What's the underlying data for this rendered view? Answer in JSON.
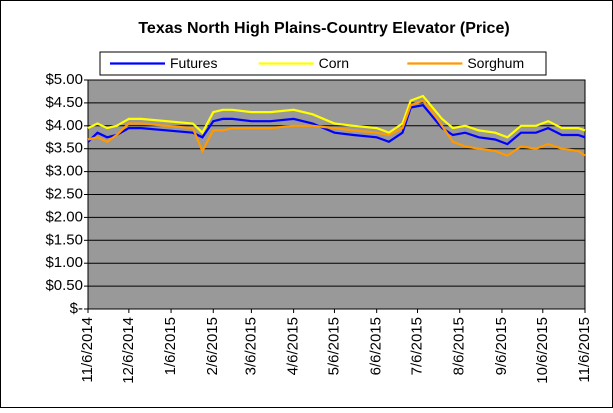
{
  "chart_data": {
    "type": "line",
    "title": "Texas North High Plains-Country Elevator (Price)",
    "legend": "top",
    "grid": true,
    "ylim": [
      0,
      5
    ],
    "yticks": [
      {
        "value": 0,
        "label": "$-"
      },
      {
        "value": 0.5,
        "label": "$0.50"
      },
      {
        "value": 1,
        "label": "$1.00"
      },
      {
        "value": 1.5,
        "label": "$1.50"
      },
      {
        "value": 2,
        "label": "$2.00"
      },
      {
        "value": 2.5,
        "label": "$2.50"
      },
      {
        "value": 3,
        "label": "$3.00"
      },
      {
        "value": 3.5,
        "label": "$3.50"
      },
      {
        "value": 4,
        "label": "$4.00"
      },
      {
        "value": 4.5,
        "label": "$4.50"
      },
      {
        "value": 5,
        "label": "$5.00"
      }
    ],
    "xlim": [
      "11/6/2014",
      "11/6/2015"
    ],
    "xticks": [
      "11/6/2014",
      "12/6/2014",
      "1/6/2015",
      "2/6/2015",
      "3/6/2015",
      "4/6/2015",
      "5/6/2015",
      "6/6/2015",
      "7/6/2015",
      "8/6/2015",
      "9/6/2015",
      "10/6/2015",
      "11/6/2015"
    ],
    "x": [
      "11/6/2014",
      "11/13/2014",
      "11/20/2014",
      "11/27/2014",
      "12/6/2014",
      "12/15/2014",
      "1/22/2015",
      "1/29/2015",
      "2/6/2015",
      "2/13/2015",
      "2/20/2015",
      "3/6/2015",
      "3/20/2015",
      "4/6/2015",
      "4/20/2015",
      "5/6/2015",
      "5/20/2015",
      "6/6/2015",
      "6/15/2015",
      "6/25/2015",
      "7/1/2015",
      "7/10/2015",
      "7/17/2015",
      "7/24/2015",
      "8/1/2015",
      "8/10/2015",
      "8/20/2015",
      "9/1/2015",
      "9/10/2015",
      "9/20/2015",
      "10/1/2015",
      "10/10/2015",
      "10/20/2015",
      "11/1/2015",
      "11/6/2015"
    ],
    "series": [
      {
        "name": "Futures",
        "color": "#0000ff",
        "values": [
          3.65,
          3.85,
          3.75,
          3.8,
          3.95,
          3.95,
          3.85,
          3.75,
          4.1,
          4.15,
          4.15,
          4.1,
          4.1,
          4.15,
          4.05,
          3.85,
          3.8,
          3.75,
          3.65,
          3.85,
          4.4,
          4.45,
          4.2,
          3.95,
          3.8,
          3.85,
          3.75,
          3.7,
          3.6,
          3.85,
          3.85,
          3.95,
          3.8,
          3.8,
          3.75
        ]
      },
      {
        "name": "Corn",
        "color": "#ffff00",
        "values": [
          3.95,
          4.05,
          3.95,
          4.0,
          4.15,
          4.15,
          4.05,
          3.85,
          4.3,
          4.35,
          4.35,
          4.3,
          4.3,
          4.35,
          4.25,
          4.05,
          4.0,
          3.95,
          3.85,
          4.05,
          4.55,
          4.65,
          4.4,
          4.15,
          3.95,
          4.0,
          3.9,
          3.85,
          3.75,
          4.0,
          4.0,
          4.1,
          3.95,
          3.95,
          3.9
        ]
      },
      {
        "name": "Sorghum",
        "color": "#ff9900",
        "values": [
          3.7,
          3.75,
          3.65,
          3.8,
          4.05,
          4.05,
          3.95,
          3.45,
          3.9,
          3.9,
          3.95,
          3.95,
          3.95,
          4.0,
          4.0,
          3.95,
          3.9,
          3.85,
          3.8,
          3.95,
          4.45,
          4.55,
          4.3,
          4.0,
          3.65,
          3.55,
          3.5,
          3.45,
          3.35,
          3.55,
          3.5,
          3.6,
          3.5,
          3.45,
          3.35
        ]
      }
    ]
  }
}
